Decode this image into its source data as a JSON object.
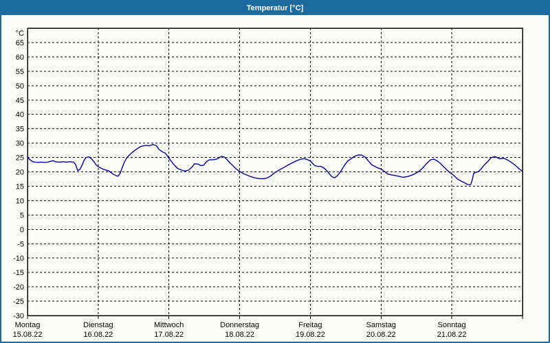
{
  "window": {
    "title": "Temperatur [°C]"
  },
  "colors": {
    "titlebar": "#1d6b9e",
    "window_border": "#1d6b9e",
    "background": "#fcfdf8",
    "title_text": "#ffffff",
    "plot_border": "#000000",
    "grid": "#000000",
    "line": "#0000a0",
    "text": "#000000"
  },
  "axis": {
    "unit_label": "°C",
    "y_ticks": [
      65,
      60,
      55,
      50,
      45,
      40,
      35,
      30,
      25,
      20,
      15,
      10,
      5,
      0,
      -5,
      -10,
      -15,
      -20,
      -25,
      -30
    ],
    "x_days": [
      {
        "name": "Montag",
        "date": "15.08.22"
      },
      {
        "name": "Dienstag",
        "date": "16.08.22"
      },
      {
        "name": "Mittwoch",
        "date": "17.08.22"
      },
      {
        "name": "Donnerstag",
        "date": "18.08.22"
      },
      {
        "name": "Freitag",
        "date": "19.08.22"
      },
      {
        "name": "Samstag",
        "date": "20.08.22"
      },
      {
        "name": "Sonntag",
        "date": "21.08.22"
      }
    ]
  },
  "chart_data": {
    "type": "line",
    "title": "Temperatur [°C]",
    "ylabel": "°C",
    "xlabel": "",
    "ylim": [
      -30,
      70
    ],
    "xlim": [
      0,
      7
    ],
    "x_unit": "days since Montag 15.08.22 00:00",
    "grid": true,
    "legend": false,
    "series": [
      {
        "name": "Temperatur",
        "color": "#0000a0",
        "points": [
          [
            0.0,
            25.2
          ],
          [
            0.03,
            24.3
          ],
          [
            0.07,
            23.6
          ],
          [
            0.1,
            23.4
          ],
          [
            0.15,
            23.3
          ],
          [
            0.19,
            23.4
          ],
          [
            0.24,
            23.3
          ],
          [
            0.29,
            23.4
          ],
          [
            0.36,
            23.9
          ],
          [
            0.4,
            23.5
          ],
          [
            0.45,
            23.4
          ],
          [
            0.5,
            23.5
          ],
          [
            0.55,
            23.4
          ],
          [
            0.6,
            23.5
          ],
          [
            0.65,
            23.4
          ],
          [
            0.68,
            22.6
          ],
          [
            0.71,
            20.4
          ],
          [
            0.74,
            20.8
          ],
          [
            0.77,
            22.2
          ],
          [
            0.8,
            24.0
          ],
          [
            0.83,
            25.0
          ],
          [
            0.87,
            25.2
          ],
          [
            0.91,
            24.4
          ],
          [
            0.95,
            23.2
          ],
          [
            0.97,
            22.4
          ],
          [
            1.0,
            21.8
          ],
          [
            1.07,
            20.9
          ],
          [
            1.15,
            20.3
          ],
          [
            1.21,
            19.2
          ],
          [
            1.26,
            18.6
          ],
          [
            1.28,
            18.5
          ],
          [
            1.31,
            19.5
          ],
          [
            1.34,
            21.5
          ],
          [
            1.37,
            23.4
          ],
          [
            1.41,
            25.1
          ],
          [
            1.46,
            26.3
          ],
          [
            1.53,
            27.7
          ],
          [
            1.6,
            28.8
          ],
          [
            1.67,
            29.2
          ],
          [
            1.73,
            29.1
          ],
          [
            1.77,
            29.5
          ],
          [
            1.82,
            29.2
          ],
          [
            1.86,
            27.8
          ],
          [
            1.91,
            26.9
          ],
          [
            1.95,
            26.5
          ],
          [
            1.97,
            25.8
          ],
          [
            2.0,
            24.8
          ],
          [
            2.06,
            22.8
          ],
          [
            2.12,
            21.2
          ],
          [
            2.19,
            20.5
          ],
          [
            2.23,
            20.3
          ],
          [
            2.28,
            20.6
          ],
          [
            2.33,
            21.8
          ],
          [
            2.36,
            22.8
          ],
          [
            2.41,
            22.7
          ],
          [
            2.45,
            22.2
          ],
          [
            2.49,
            22.3
          ],
          [
            2.53,
            23.5
          ],
          [
            2.57,
            24.2
          ],
          [
            2.62,
            24.2
          ],
          [
            2.67,
            24.4
          ],
          [
            2.71,
            24.9
          ],
          [
            2.74,
            25.4
          ],
          [
            2.78,
            25.2
          ],
          [
            2.82,
            24.3
          ],
          [
            2.86,
            23.2
          ],
          [
            2.91,
            22.0
          ],
          [
            2.95,
            21.0
          ],
          [
            3.0,
            20.2
          ],
          [
            3.05,
            19.4
          ],
          [
            3.1,
            18.9
          ],
          [
            3.16,
            18.3
          ],
          [
            3.23,
            17.8
          ],
          [
            3.3,
            17.6
          ],
          [
            3.37,
            17.7
          ],
          [
            3.43,
            18.4
          ],
          [
            3.49,
            19.6
          ],
          [
            3.55,
            20.5
          ],
          [
            3.63,
            21.6
          ],
          [
            3.7,
            22.6
          ],
          [
            3.78,
            23.6
          ],
          [
            3.86,
            24.4
          ],
          [
            3.92,
            24.6
          ],
          [
            3.97,
            24.1
          ],
          [
            4.0,
            23.8
          ],
          [
            4.03,
            23.0
          ],
          [
            4.06,
            22.2
          ],
          [
            4.1,
            21.9
          ],
          [
            4.15,
            21.9
          ],
          [
            4.2,
            21.2
          ],
          [
            4.25,
            19.9
          ],
          [
            4.3,
            18.4
          ],
          [
            4.34,
            17.9
          ],
          [
            4.38,
            18.6
          ],
          [
            4.43,
            20.2
          ],
          [
            4.48,
            22.2
          ],
          [
            4.53,
            23.8
          ],
          [
            4.58,
            24.6
          ],
          [
            4.63,
            25.5
          ],
          [
            4.68,
            25.9
          ],
          [
            4.73,
            25.8
          ],
          [
            4.78,
            25.0
          ],
          [
            4.82,
            23.8
          ],
          [
            4.87,
            22.4
          ],
          [
            4.92,
            21.8
          ],
          [
            4.96,
            21.3
          ],
          [
            5.0,
            21.0
          ],
          [
            5.05,
            20.1
          ],
          [
            5.09,
            19.3
          ],
          [
            5.15,
            18.9
          ],
          [
            5.23,
            18.6
          ],
          [
            5.31,
            18.1
          ],
          [
            5.38,
            18.4
          ],
          [
            5.45,
            19.0
          ],
          [
            5.52,
            19.9
          ],
          [
            5.58,
            21.1
          ],
          [
            5.64,
            22.8
          ],
          [
            5.7,
            24.2
          ],
          [
            5.75,
            24.4
          ],
          [
            5.79,
            23.9
          ],
          [
            5.83,
            23.1
          ],
          [
            5.88,
            21.9
          ],
          [
            5.93,
            20.7
          ],
          [
            5.97,
            19.8
          ],
          [
            6.0,
            19.3
          ],
          [
            6.04,
            18.5
          ],
          [
            6.08,
            17.5
          ],
          [
            6.13,
            16.8
          ],
          [
            6.18,
            16.2
          ],
          [
            6.22,
            15.6
          ],
          [
            6.25,
            15.5
          ],
          [
            6.27,
            15.7
          ],
          [
            6.29,
            17.3
          ],
          [
            6.31,
            19.5
          ],
          [
            6.34,
            19.8
          ],
          [
            6.38,
            20.1
          ],
          [
            6.42,
            21.2
          ],
          [
            6.46,
            22.4
          ],
          [
            6.51,
            23.6
          ],
          [
            6.55,
            24.8
          ],
          [
            6.6,
            25.3
          ],
          [
            6.63,
            25.1
          ],
          [
            6.66,
            24.7
          ],
          [
            6.69,
            24.5
          ],
          [
            6.72,
            24.7
          ],
          [
            6.75,
            24.6
          ],
          [
            6.79,
            24.1
          ],
          [
            6.83,
            23.5
          ],
          [
            6.88,
            22.6
          ],
          [
            6.92,
            21.8
          ],
          [
            6.96,
            20.9
          ],
          [
            6.99,
            20.3
          ]
        ]
      }
    ]
  }
}
